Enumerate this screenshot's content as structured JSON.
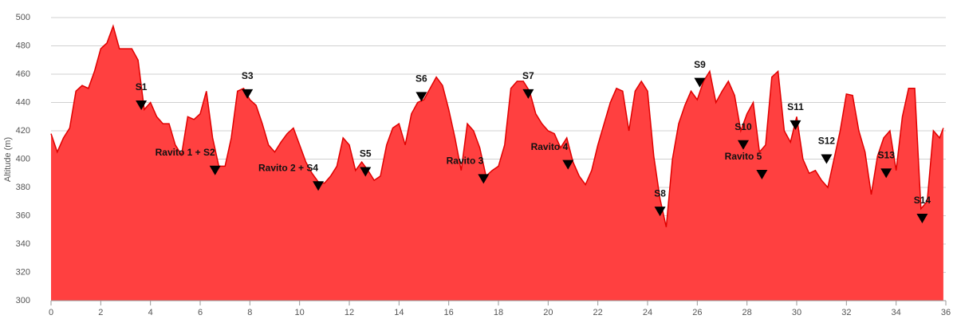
{
  "chart_data": {
    "type": "area",
    "y_label": "Altitude (m)",
    "color": "#ff4040",
    "line_color": "#e00000",
    "grid": true,
    "xlim": [
      0,
      36
    ],
    "xticks": [
      0,
      2,
      4,
      6,
      8,
      10,
      12,
      14,
      16,
      18,
      20,
      22,
      24,
      26,
      28,
      30,
      32,
      34,
      36
    ],
    "ylim": [
      300,
      500
    ],
    "yticks": [
      300,
      320,
      340,
      360,
      380,
      400,
      420,
      440,
      460,
      480,
      500
    ],
    "x": [
      0,
      0.25,
      0.5,
      0.75,
      1,
      1.25,
      1.5,
      1.75,
      2,
      2.25,
      2.5,
      2.75,
      3,
      3.25,
      3.5,
      3.75,
      4,
      4.25,
      4.5,
      4.75,
      5,
      5.25,
      5.5,
      5.75,
      6,
      6.25,
      6.5,
      6.75,
      7,
      7.25,
      7.5,
      7.75,
      8,
      8.25,
      8.5,
      8.75,
      9,
      9.25,
      9.5,
      9.75,
      10,
      10.25,
      10.5,
      10.75,
      11,
      11.25,
      11.5,
      11.75,
      12,
      12.25,
      12.5,
      12.75,
      13,
      13.25,
      13.5,
      13.75,
      14,
      14.25,
      14.5,
      14.75,
      15,
      15.25,
      15.5,
      15.75,
      16,
      16.25,
      16.5,
      16.75,
      17,
      17.25,
      17.5,
      17.75,
      18,
      18.25,
      18.5,
      18.75,
      19,
      19.25,
      19.5,
      19.75,
      20,
      20.25,
      20.5,
      20.75,
      21,
      21.25,
      21.5,
      21.75,
      22,
      22.25,
      22.5,
      22.75,
      23,
      23.25,
      23.5,
      23.75,
      24,
      24.25,
      24.5,
      24.75,
      25,
      25.25,
      25.5,
      25.75,
      26,
      26.25,
      26.5,
      26.75,
      27,
      27.25,
      27.5,
      27.75,
      28,
      28.25,
      28.5,
      28.75,
      29,
      29.25,
      29.5,
      29.75,
      30,
      30.25,
      30.5,
      30.75,
      31,
      31.25,
      31.5,
      31.75,
      32,
      32.25,
      32.5,
      32.75,
      33,
      33.25,
      33.5,
      33.75,
      34,
      34.25,
      34.5,
      34.75,
      35,
      35.25,
      35.5,
      35.75,
      35.9
    ],
    "values": [
      418,
      405,
      415,
      422,
      448,
      452,
      450,
      462,
      478,
      482,
      494,
      478,
      478,
      478,
      470,
      435,
      440,
      430,
      425,
      425,
      410,
      403,
      430,
      428,
      432,
      448,
      415,
      395,
      395,
      415,
      448,
      450,
      442,
      438,
      425,
      410,
      405,
      412,
      418,
      422,
      410,
      398,
      390,
      384,
      383,
      388,
      395,
      415,
      410,
      392,
      398,
      392,
      385,
      388,
      410,
      422,
      425,
      410,
      432,
      440,
      442,
      450,
      458,
      452,
      435,
      415,
      392,
      425,
      420,
      408,
      388,
      392,
      395,
      410,
      450,
      455,
      455,
      448,
      432,
      425,
      420,
      418,
      408,
      415,
      398,
      388,
      382,
      392,
      410,
      425,
      440,
      450,
      448,
      420,
      448,
      455,
      448,
      402,
      372,
      352,
      400,
      425,
      438,
      448,
      442,
      455,
      462,
      440,
      448,
      455,
      445,
      420,
      432,
      440,
      405,
      410,
      458,
      462,
      420,
      412,
      430,
      400,
      390,
      392,
      385,
      380,
      400,
      420,
      446,
      445,
      420,
      405,
      375,
      402,
      415,
      420,
      392,
      430,
      450,
      450,
      365,
      370,
      420,
      415,
      422
    ],
    "annotations": [
      {
        "label": "S1",
        "x": 3.63,
        "y": 438
      },
      {
        "label": "Ravito 1 + S2",
        "x": 6.6,
        "y": 392
      },
      {
        "label": "S3",
        "x": 7.9,
        "y": 446
      },
      {
        "label": "Ravito 2 + S4",
        "x": 10.75,
        "y": 381
      },
      {
        "label": "S5",
        "x": 12.65,
        "y": 391
      },
      {
        "label": "S6",
        "x": 14.9,
        "y": 444
      },
      {
        "label": "Ravito 3",
        "x": 17.4,
        "y": 386
      },
      {
        "label": "S7",
        "x": 19.2,
        "y": 446
      },
      {
        "label": "Ravito 4",
        "x": 20.8,
        "y": 396
      },
      {
        "label": "S8",
        "x": 24.5,
        "y": 363
      },
      {
        "label": "S9",
        "x": 26.1,
        "y": 454
      },
      {
        "label": "S10",
        "x": 27.85,
        "y": 410
      },
      {
        "label": "Ravito 5",
        "x": 28.6,
        "y": 389
      },
      {
        "label": "S11",
        "x": 29.95,
        "y": 424
      },
      {
        "label": "S12",
        "x": 31.2,
        "y": 400
      },
      {
        "label": "S13",
        "x": 33.6,
        "y": 390
      },
      {
        "label": "S14",
        "x": 35.05,
        "y": 358
      }
    ]
  }
}
